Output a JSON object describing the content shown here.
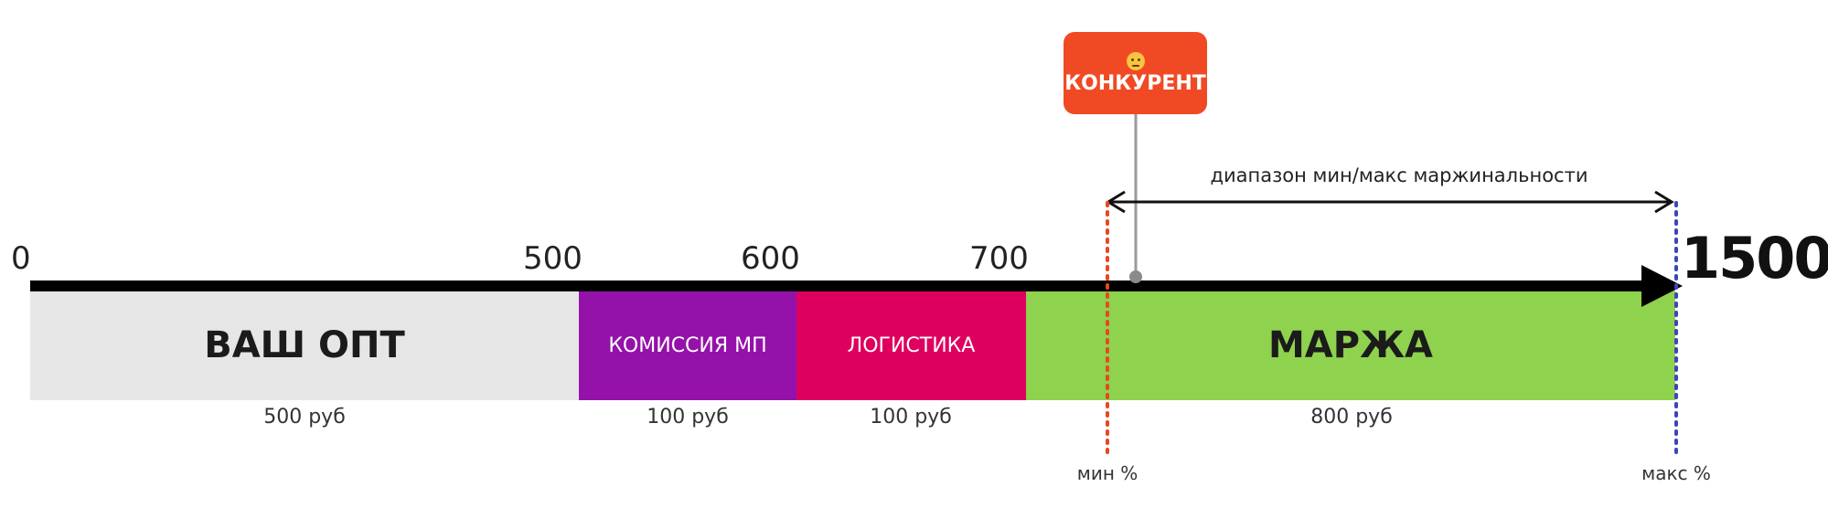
{
  "axis": {
    "ticks": [
      {
        "label": "0"
      },
      {
        "label": "500"
      },
      {
        "label": "600"
      },
      {
        "label": "700"
      }
    ],
    "end_label": "1500"
  },
  "segments": [
    {
      "label": "ВАШ ОПТ",
      "amount": "500 руб",
      "color": "#e6e6e6"
    },
    {
      "label": "КОМИССИЯ МП",
      "amount": "100 руб",
      "color": "#9412aa"
    },
    {
      "label": "ЛОГИСТИКА",
      "amount": "100 руб",
      "color": "#de005f"
    },
    {
      "label": "МАРЖА",
      "amount": "800 руб",
      "color": "#8fd24e"
    }
  ],
  "competitor": {
    "label": "КОНКУРЕНТ",
    "icon": "angry-face-icon",
    "color": "#f04a24"
  },
  "range": {
    "label": "диапазон мин/макс маржинальности",
    "min_label": "мин %",
    "max_label": "макс %",
    "min_color": "#e8471f",
    "max_color": "#3c46b8"
  }
}
